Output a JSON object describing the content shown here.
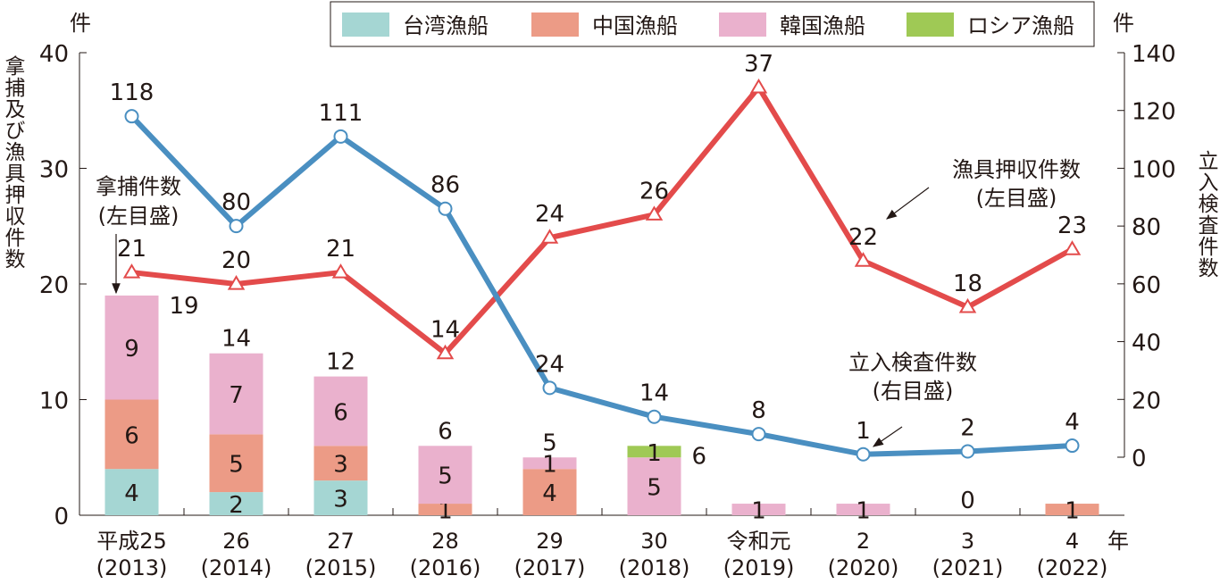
{
  "chart_data": {
    "type": "bar+line",
    "categories": [
      "平成25",
      "26",
      "27",
      "28",
      "29",
      "30",
      "令和元",
      "2",
      "3",
      "4"
    ],
    "categories_sub": [
      "(2013)",
      "(2014)",
      "(2015)",
      "(2016)",
      "(2017)",
      "(2018)",
      "(2019)",
      "(2020)",
      "(2021)",
      "(2022)"
    ],
    "x_unit": "年",
    "left_axis": {
      "unit": "件",
      "title": "拿捕及び漁具押収件数",
      "range": [
        0,
        40
      ],
      "ticks": [
        0,
        10,
        20,
        30,
        40
      ]
    },
    "right_axis": {
      "unit": "件",
      "title": "立入検査件数",
      "range": [
        0,
        140
      ],
      "ticks": [
        0,
        20,
        40,
        60,
        80,
        100,
        120,
        140
      ]
    },
    "bar_series": [
      {
        "name": "台湾漁船",
        "color": "#a5d6d3",
        "values": [
          4,
          2,
          3,
          0,
          0,
          0,
          0,
          0,
          0,
          0
        ]
      },
      {
        "name": "中国漁船",
        "color": "#ec9b86",
        "values": [
          6,
          5,
          3,
          1,
          4,
          0,
          0,
          0,
          0,
          1
        ]
      },
      {
        "name": "韓国漁船",
        "color": "#eab1cd",
        "values": [
          9,
          7,
          6,
          5,
          1,
          5,
          1,
          1,
          0,
          0
        ]
      },
      {
        "name": "ロシア漁船",
        "color": "#9fc955",
        "values": [
          0,
          0,
          0,
          0,
          0,
          1,
          0,
          0,
          0,
          0
        ]
      }
    ],
    "bar_totals": [
      19,
      14,
      12,
      6,
      5,
      6,
      1,
      1,
      0,
      1
    ],
    "line_series": [
      {
        "name": "漁具押収件数",
        "axis": "left",
        "color": "#e34b4b",
        "marker": "triangle",
        "values": [
          21,
          20,
          21,
          14,
          24,
          26,
          37,
          22,
          18,
          23
        ]
      },
      {
        "name": "立入検査件数",
        "axis": "right",
        "color": "#4a8fc1",
        "marker": "circle",
        "values": [
          118,
          80,
          111,
          86,
          24,
          14,
          8,
          1,
          2,
          4
        ]
      }
    ],
    "annotations": [
      {
        "line1": "拿捕件数",
        "line2": "(左目盛)"
      },
      {
        "line1": "漁具押収件数",
        "line2": "(左目盛)"
      },
      {
        "line1": "立入検査件数",
        "line2": "(右目盛)"
      }
    ],
    "legend_placement": "top",
    "grid": false
  }
}
